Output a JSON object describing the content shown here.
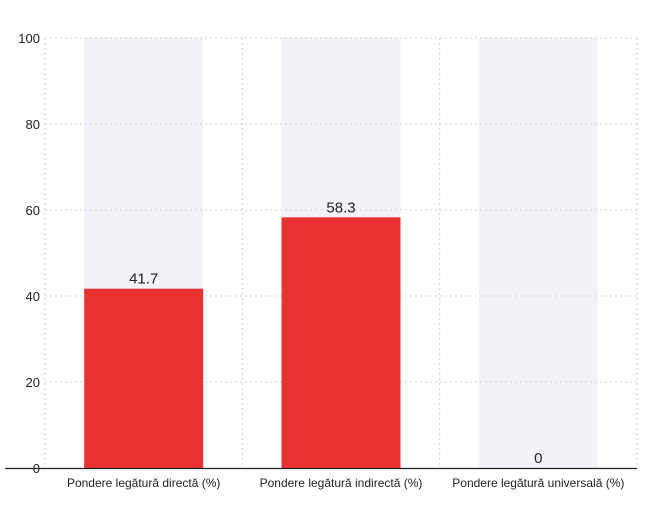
{
  "chart_data": {
    "type": "bar",
    "categories": [
      "Pondere legătură directă (%)",
      "Pondere legătură indirectă (%)",
      "Pondere legătură universală (%)"
    ],
    "values": [
      41.7,
      58.3,
      0
    ],
    "data_labels": [
      "41.7",
      "58.3",
      "0"
    ],
    "ylim": [
      0,
      100
    ],
    "yticks": [
      0,
      20,
      40,
      60,
      80,
      100
    ],
    "grid": true,
    "background_bars": true,
    "colors": {
      "bar": "#e83232",
      "background_bar": "#f2f3f8",
      "grid": "#d0d0d0",
      "axis": "#222222",
      "text": "#222222"
    }
  }
}
